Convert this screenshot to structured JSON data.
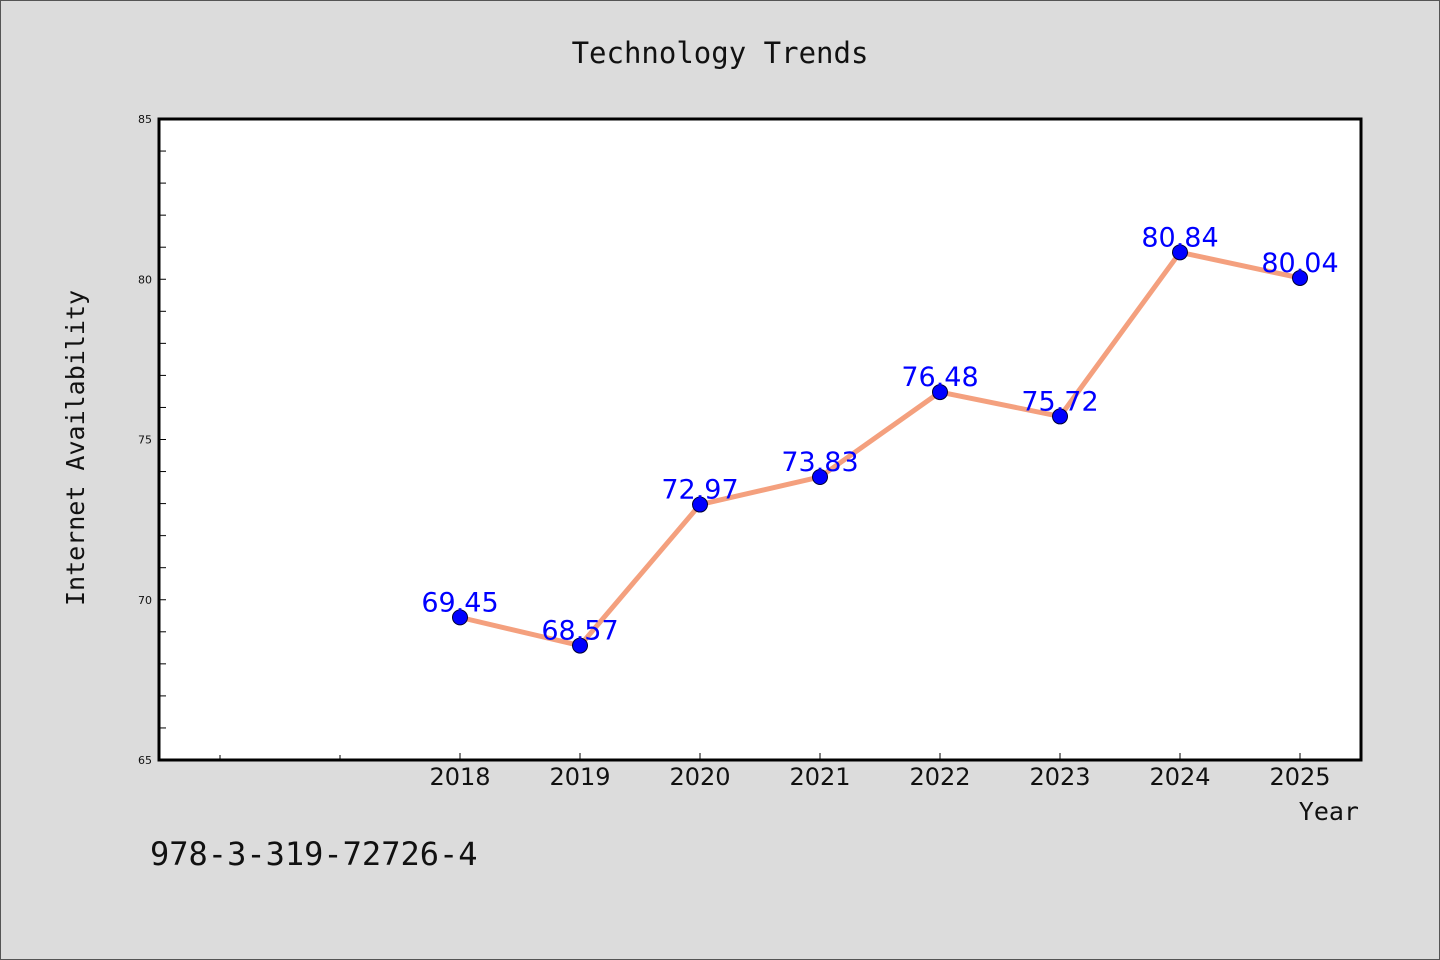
{
  "chart_data": {
    "type": "line",
    "title": "Technology Trends",
    "xlabel": "Year",
    "ylabel": "Internet Availability",
    "categories": [
      "2018",
      "2019",
      "2020",
      "2021",
      "2022",
      "2023",
      "2024",
      "2025"
    ],
    "series": [
      {
        "values": [
          69.45,
          68.57,
          72.97,
          73.83,
          76.48,
          75.72,
          80.84,
          80.04
        ],
        "data_labels": [
          "69.45",
          "68.57",
          "72.97",
          "73.83",
          "76.48",
          "75.72",
          "80.84",
          "80.04"
        ],
        "line_color": "#f4a07e",
        "marker_color": "#0000ff"
      }
    ],
    "ylim": [
      65,
      85
    ],
    "yticks": [
      "65",
      "70",
      "75",
      "80",
      "85"
    ],
    "grid": false,
    "legend": "none"
  },
  "footer_text": "978-3-319-72726-4",
  "colors": {
    "background": "#dcdcdc",
    "plot_background": "#ffffff",
    "line": "#f4a07e",
    "marker": "#0000ff",
    "data_label": "#0000ff"
  }
}
